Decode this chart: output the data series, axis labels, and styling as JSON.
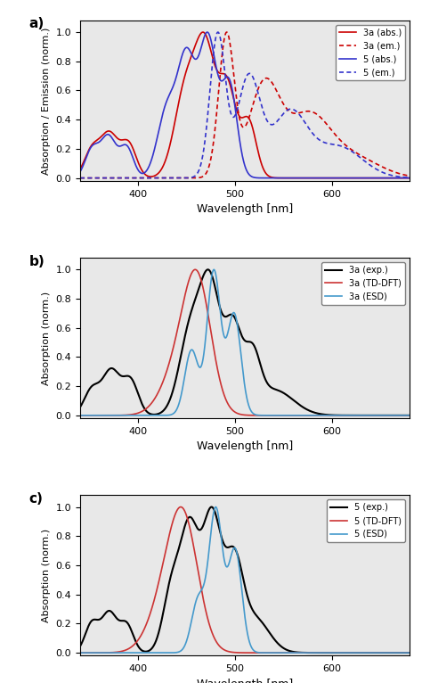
{
  "panel_a": {
    "title": "a)",
    "ylabel": "Absorption / Emission (norm.)",
    "xlabel": "Wavelength [nm]",
    "xlim": [
      340,
      680
    ],
    "ylim": [
      -0.02,
      1.08
    ],
    "yticks": [
      0.0,
      0.2,
      0.4,
      0.6,
      0.8,
      1.0
    ],
    "xticks": [
      400,
      500,
      600
    ],
    "legend": [
      "3a (abs.)",
      "3a (em.)",
      "5 (abs.)",
      "5 (em.)"
    ],
    "colors": [
      "#cc0000",
      "#cc0000",
      "#3333cc",
      "#3333cc"
    ],
    "styles": [
      "-",
      ":",
      "-",
      ":"
    ],
    "linewidths": [
      1.2,
      1.2,
      1.2,
      1.2
    ]
  },
  "panel_b": {
    "title": "b)",
    "ylabel": "Absorption (norm.)",
    "xlabel": "Wavelength [nm]",
    "xlim": [
      340,
      680
    ],
    "ylim": [
      -0.02,
      1.08
    ],
    "yticks": [
      0.0,
      0.2,
      0.4,
      0.6,
      0.8,
      1.0
    ],
    "xticks": [
      400,
      500,
      600
    ],
    "legend": [
      "3a (exp.)",
      "3a (TD-DFT)",
      "3a (ESD)"
    ],
    "colors": [
      "#000000",
      "#cc3333",
      "#4499cc"
    ],
    "styles": [
      "-",
      "-",
      "-"
    ],
    "linewidths": [
      1.5,
      1.2,
      1.2
    ]
  },
  "panel_c": {
    "title": "c)",
    "ylabel": "Absorption (norm.)",
    "xlabel": "Wavelength [nm]",
    "xlim": [
      340,
      680
    ],
    "ylim": [
      -0.02,
      1.08
    ],
    "yticks": [
      0.0,
      0.2,
      0.4,
      0.6,
      0.8,
      1.0
    ],
    "xticks": [
      400,
      500,
      600
    ],
    "legend": [
      "5 (exp.)",
      "5 (TD-DFT)",
      "5 (ESD)"
    ],
    "colors": [
      "#000000",
      "#cc3333",
      "#4499cc"
    ],
    "styles": [
      "-",
      "-",
      "-"
    ],
    "linewidths": [
      1.5,
      1.2,
      1.2
    ]
  },
  "background_color": "#e8e8e8",
  "fig_background": "#ffffff"
}
